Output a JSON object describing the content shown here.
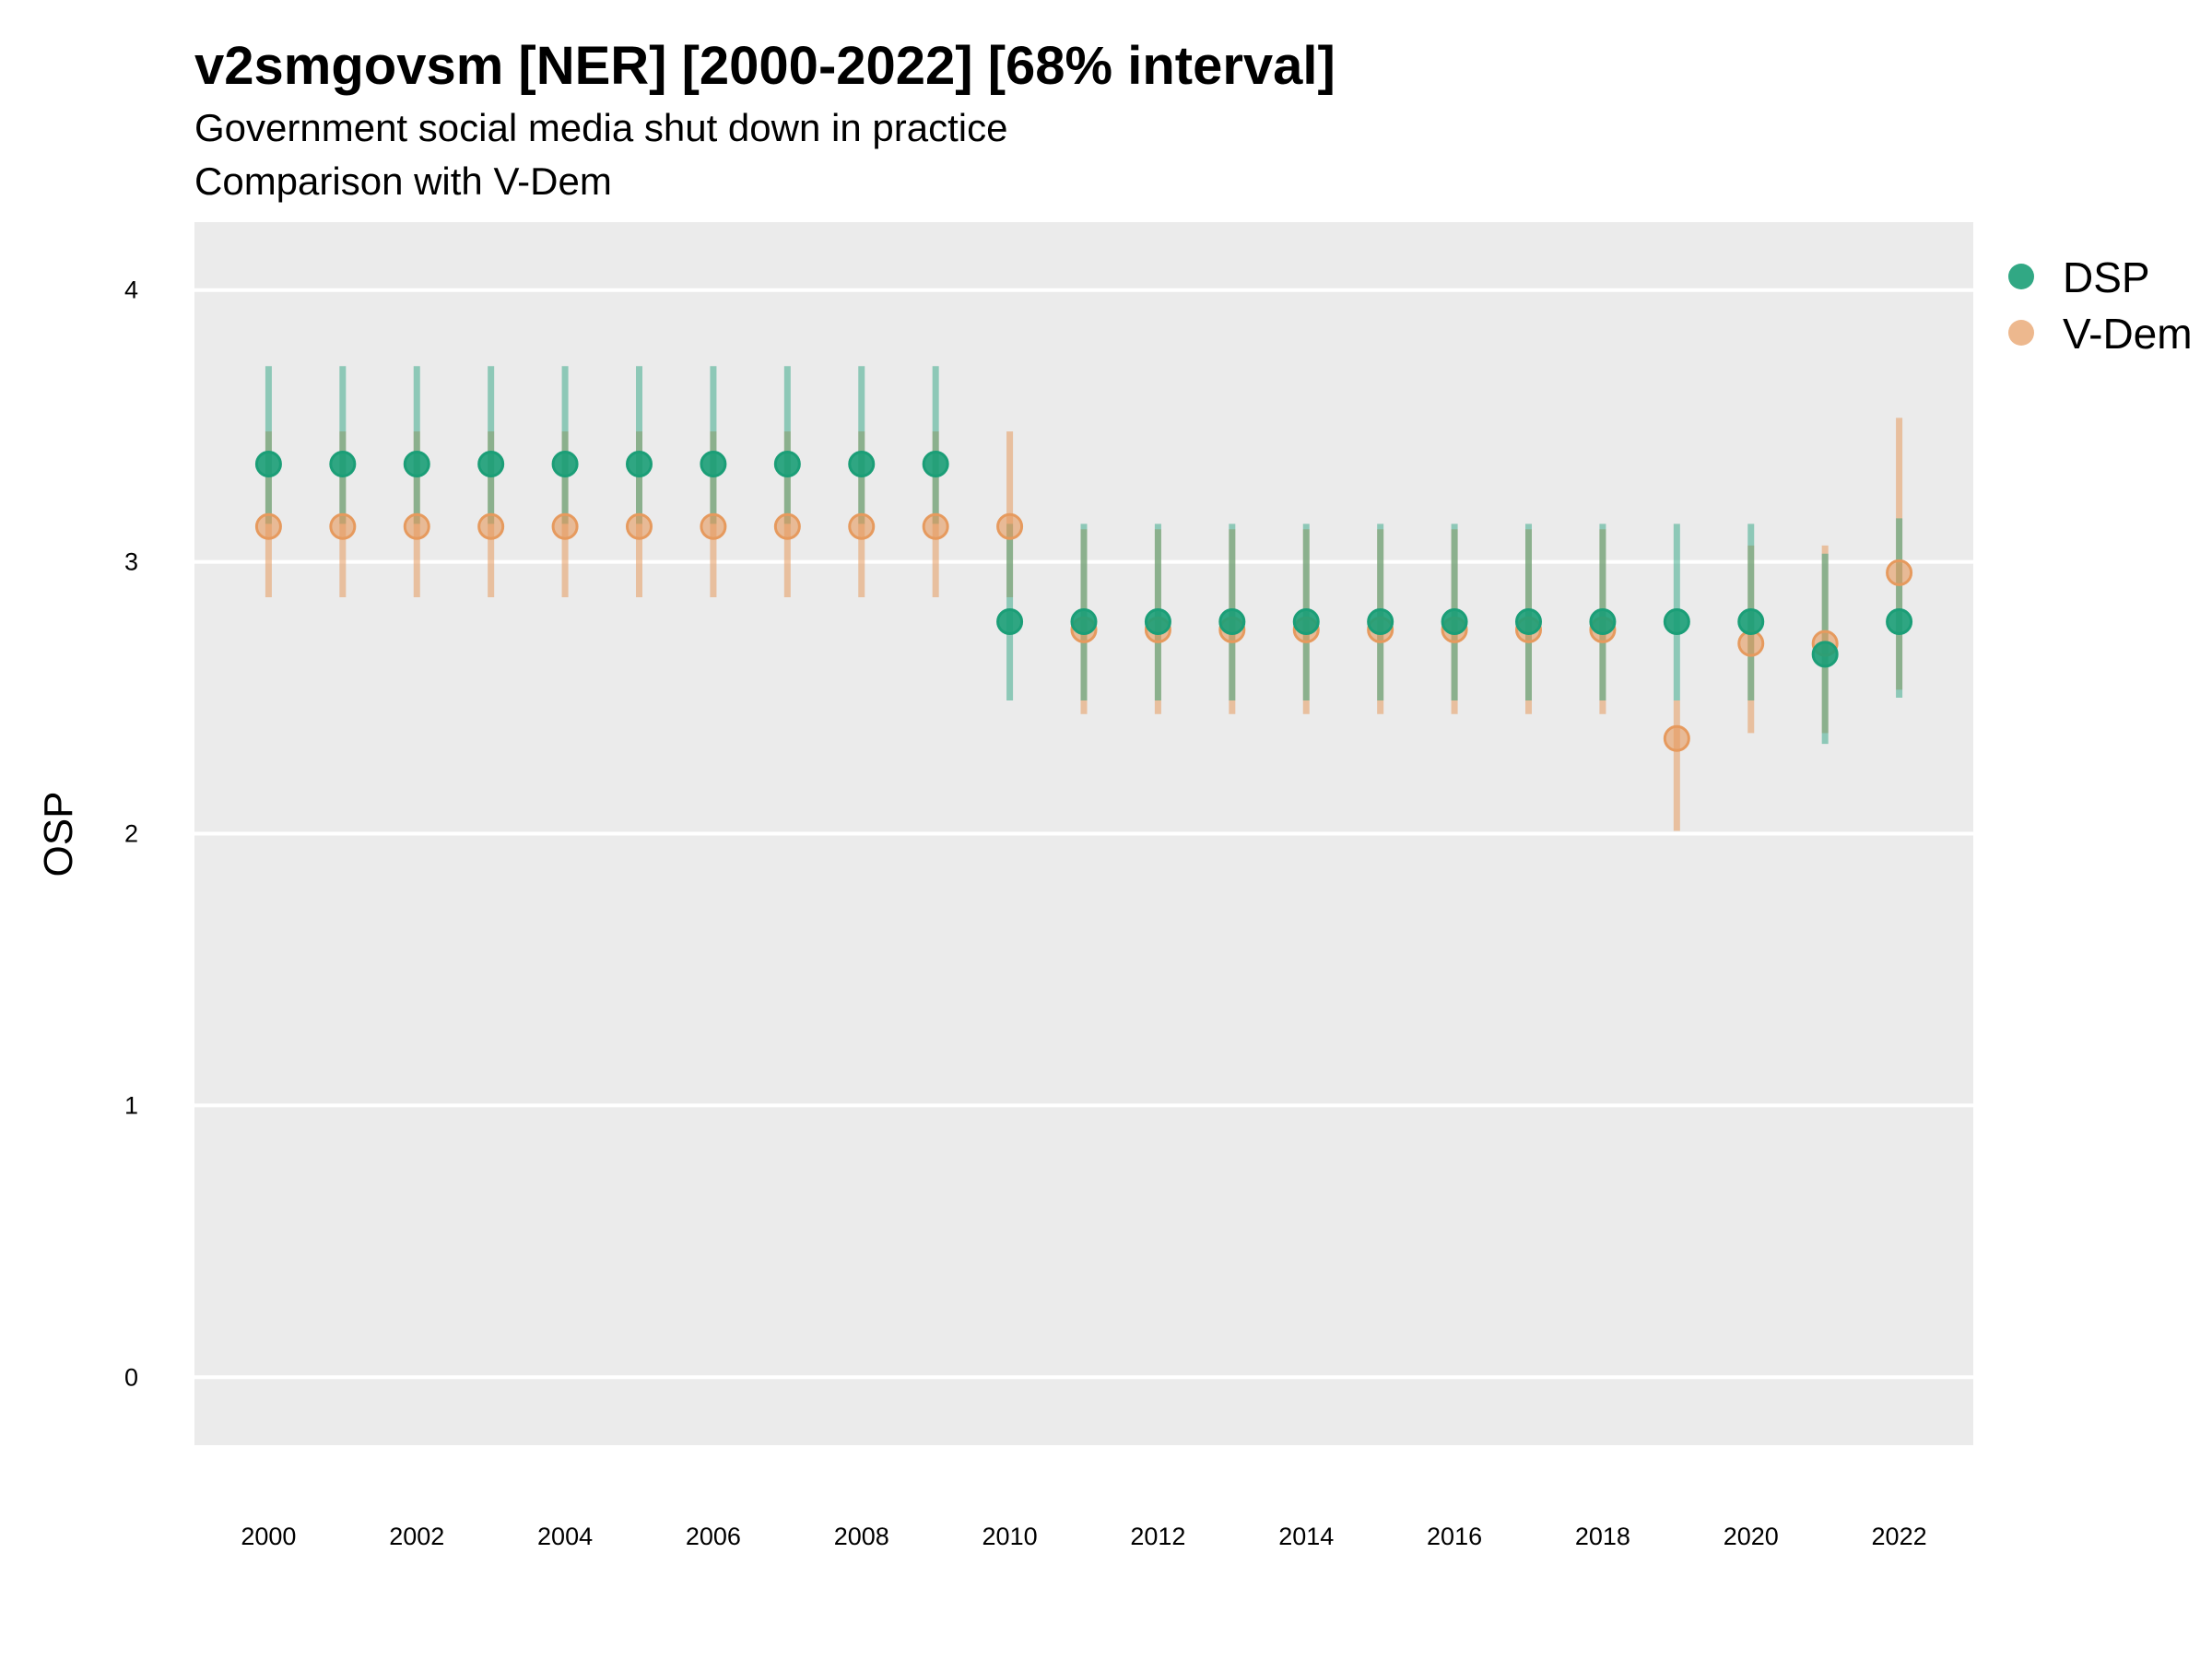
{
  "chart_data": {
    "type": "scatter",
    "title": "v2smgovsm [NER] [2000-2022] [68% interval]",
    "subtitle": "Government social media shut down in practice",
    "subtitle2": "Comparison with V-Dem",
    "xlabel": "",
    "ylabel": "OSP",
    "xlim": [
      1999,
      2023
    ],
    "ylim": [
      -0.25,
      4.25
    ],
    "x_ticks": [
      2000,
      2002,
      2004,
      2006,
      2008,
      2010,
      2012,
      2014,
      2016,
      2018,
      2020,
      2022
    ],
    "y_ticks": [
      0,
      1,
      2,
      3,
      4
    ],
    "grid": true,
    "legend_position": "right",
    "x": [
      2000,
      2001,
      2002,
      2003,
      2004,
      2005,
      2006,
      2007,
      2008,
      2009,
      2010,
      2011,
      2012,
      2013,
      2014,
      2015,
      2016,
      2017,
      2018,
      2019,
      2020,
      2021,
      2022
    ],
    "series": [
      {
        "name": "DSP",
        "color": "#1b9e77",
        "values": [
          3.36,
          3.36,
          3.36,
          3.36,
          3.36,
          3.36,
          3.36,
          3.36,
          3.36,
          3.36,
          2.78,
          2.78,
          2.78,
          2.78,
          2.78,
          2.78,
          2.78,
          2.78,
          2.78,
          2.78,
          2.78,
          2.66,
          2.78
        ],
        "lower": [
          3.14,
          3.14,
          3.14,
          3.14,
          3.14,
          3.14,
          3.14,
          3.14,
          3.14,
          3.14,
          2.49,
          2.49,
          2.49,
          2.49,
          2.49,
          2.49,
          2.49,
          2.49,
          2.49,
          2.49,
          2.49,
          2.33,
          2.5
        ],
        "upper": [
          3.72,
          3.72,
          3.72,
          3.72,
          3.72,
          3.72,
          3.72,
          3.72,
          3.72,
          3.72,
          3.14,
          3.14,
          3.14,
          3.14,
          3.14,
          3.14,
          3.14,
          3.14,
          3.14,
          3.14,
          3.14,
          3.03,
          3.16
        ]
      },
      {
        "name": "V-Dem",
        "color": "#e69a5e",
        "values": [
          3.13,
          3.13,
          3.13,
          3.13,
          3.13,
          3.13,
          3.13,
          3.13,
          3.13,
          3.13,
          3.13,
          2.75,
          2.75,
          2.75,
          2.75,
          2.75,
          2.75,
          2.75,
          2.75,
          2.35,
          2.7,
          2.7,
          2.96
        ],
        "lower": [
          2.87,
          2.87,
          2.87,
          2.87,
          2.87,
          2.87,
          2.87,
          2.87,
          2.87,
          2.87,
          2.87,
          2.44,
          2.44,
          2.44,
          2.44,
          2.44,
          2.44,
          2.44,
          2.44,
          2.01,
          2.37,
          2.37,
          2.53
        ],
        "upper": [
          3.48,
          3.48,
          3.48,
          3.48,
          3.48,
          3.48,
          3.48,
          3.48,
          3.48,
          3.48,
          3.48,
          3.12,
          3.12,
          3.12,
          3.12,
          3.12,
          3.12,
          3.12,
          3.12,
          2.49,
          3.06,
          3.06,
          3.53
        ]
      }
    ]
  }
}
